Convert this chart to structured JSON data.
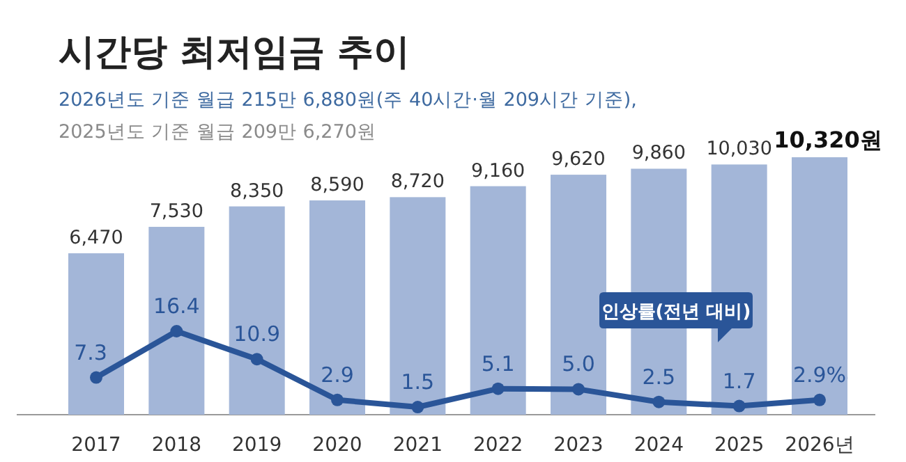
{
  "chart_data": {
    "type": "bar",
    "title": "시간당 최저임금 추이",
    "subtitle": "2026년도 기준 월급 215만 6,880원(주 40시간·월 209시간 기준),",
    "annotations": [
      "2025년도 기준 월급 209만 6,270원"
    ],
    "categories": [
      "2017",
      "2018",
      "2019",
      "2020",
      "2021",
      "2022",
      "2023",
      "2024",
      "2025",
      "2026년"
    ],
    "series": [
      {
        "color": "#a3b6d8",
        "values": [
          6470,
          7530,
          8350,
          8590,
          8720,
          9160,
          9620,
          9860,
          10030,
          10320
        ],
        "value_labels": [
          "6,470",
          "7,530",
          "8,350",
          "8,590",
          "8,720",
          "9,160",
          "9,620",
          "9,860",
          "10,030",
          "10,320원"
        ]
      },
      {
        "type": "line",
        "axis": "y2",
        "name": "인상률(전년 대비)",
        "color": "#2a5598",
        "marker": "circle",
        "values": [
          7.3,
          16.4,
          10.9,
          2.9,
          1.5,
          5.1,
          5.0,
          2.5,
          1.7,
          2.9
        ],
        "value_labels": [
          "7.3",
          "16.4",
          "10.9",
          "2.9",
          "1.5",
          "5.1",
          "5.0",
          "2.5",
          "1.7",
          "2.9%"
        ]
      }
    ]
  }
}
